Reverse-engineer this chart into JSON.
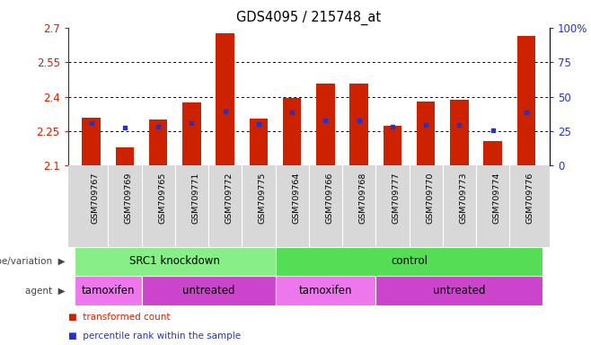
{
  "title": "GDS4095 / 215748_at",
  "samples": [
    "GSM709767",
    "GSM709769",
    "GSM709765",
    "GSM709771",
    "GSM709772",
    "GSM709775",
    "GSM709764",
    "GSM709766",
    "GSM709768",
    "GSM709777",
    "GSM709770",
    "GSM709773",
    "GSM709774",
    "GSM709776"
  ],
  "bar_values": [
    2.31,
    2.18,
    2.3,
    2.375,
    2.675,
    2.305,
    2.395,
    2.455,
    2.455,
    2.275,
    2.38,
    2.385,
    2.205,
    2.665
  ],
  "bar_bottom": 2.1,
  "percentile_values": [
    2.285,
    2.265,
    2.27,
    2.285,
    2.335,
    2.28,
    2.33,
    2.295,
    2.295,
    2.27,
    2.278,
    2.278,
    2.255,
    2.33
  ],
  "ylim": [
    2.1,
    2.7
  ],
  "yticks_left": [
    2.1,
    2.25,
    2.4,
    2.55,
    2.7
  ],
  "ytick_labels_left": [
    "2.1",
    "2.25",
    "2.4",
    "2.55",
    "2.7"
  ],
  "yticks_right_pct": [
    0,
    25,
    50,
    75,
    100
  ],
  "ytick_labels_right": [
    "0",
    "25",
    "50",
    "75",
    "100%"
  ],
  "bar_color": "#cc2200",
  "percentile_color": "#2233cc",
  "grid_color": "#000000",
  "genotype_groups": [
    {
      "label": "SRC1 knockdown",
      "start": 0,
      "end": 6,
      "color": "#88ee88"
    },
    {
      "label": "control",
      "start": 6,
      "end": 14,
      "color": "#55dd55"
    }
  ],
  "agent_groups": [
    {
      "label": "tamoxifen",
      "start": 0,
      "end": 2,
      "color": "#ee77ee"
    },
    {
      "label": "untreated",
      "start": 2,
      "end": 6,
      "color": "#cc44cc"
    },
    {
      "label": "tamoxifen",
      "start": 6,
      "end": 9,
      "color": "#ee77ee"
    },
    {
      "label": "untreated",
      "start": 9,
      "end": 14,
      "color": "#cc44cc"
    }
  ],
  "legend_items": [
    {
      "label": "transformed count",
      "color": "#cc2200"
    },
    {
      "label": "percentile rank within the sample",
      "color": "#2233cc"
    }
  ],
  "left_label_color": "#cc2200",
  "right_label_color": "#2233cc",
  "bar_width": 0.55,
  "tick_label_area_color": "#d8d8d8",
  "left_side_label_color": "#444444"
}
